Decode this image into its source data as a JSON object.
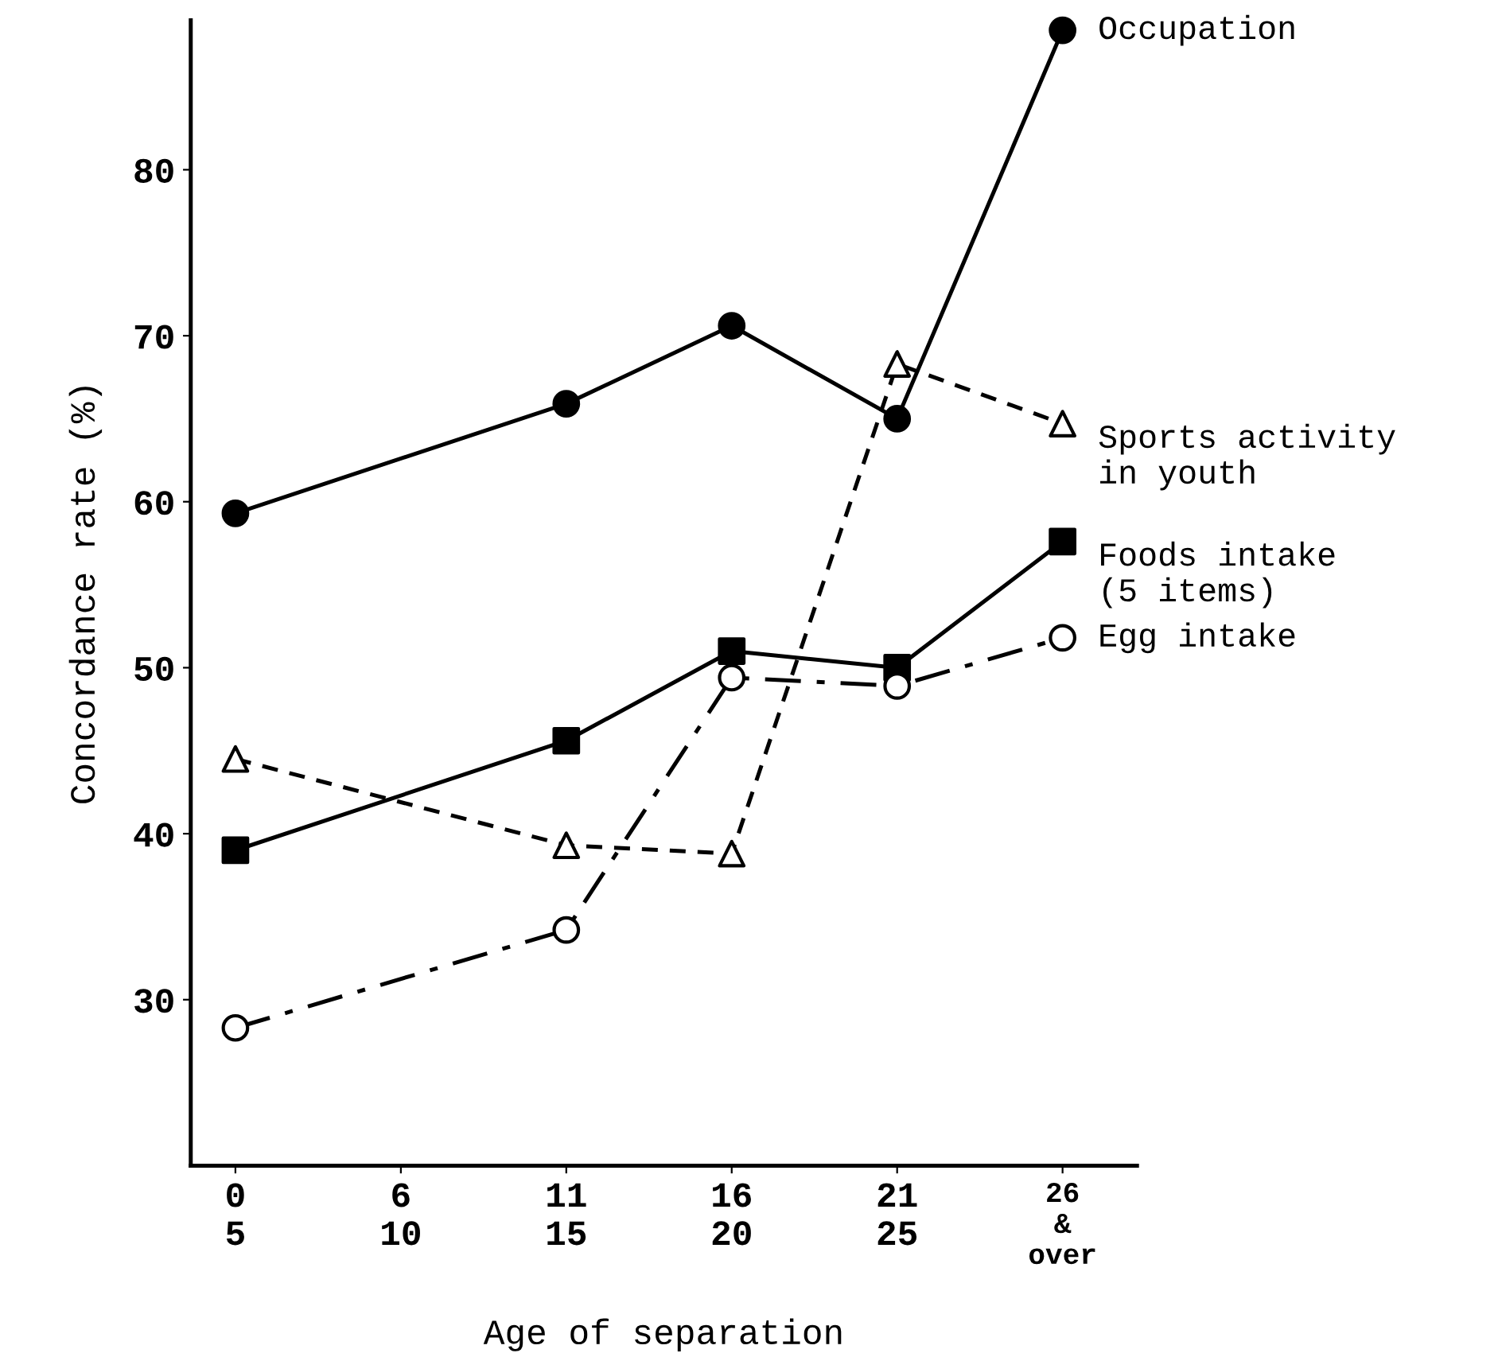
{
  "chart_data": {
    "type": "line",
    "xlabel": "Age of separation",
    "ylabel": "Concordance rate (%)",
    "categories": [
      "0\n5",
      "6\n10",
      "11\n15",
      "16\n20",
      "21\n25",
      "26\n&\nover"
    ],
    "ylim": [
      20,
      89
    ],
    "yticks": [
      30,
      40,
      50,
      60,
      70,
      80
    ],
    "grid": false,
    "legend": false,
    "series": [
      {
        "name": "Occupation",
        "color": "#000000",
        "marker": "circle",
        "line_style": "solid",
        "values": [
          59.3,
          null,
          65.9,
          70.6,
          65.0,
          88.4
        ]
      },
      {
        "name": "Sports activity\nin youth",
        "color": "#000000",
        "marker": "triangle",
        "colors": [
          "#ffffff",
          null,
          "#ffffff",
          "#ffffff",
          "#ffffff",
          "#ffffff"
        ],
        "line_style": "dashed",
        "values": [
          44.5,
          null,
          39.3,
          38.8,
          68.3,
          64.7
        ]
      },
      {
        "name": "Foods intake\n(5 items)",
        "color": "#000000",
        "marker": "square",
        "line_style": "solid",
        "values": [
          39.0,
          null,
          45.6,
          51.0,
          50.0,
          57.6
        ]
      },
      {
        "name": "Egg intake",
        "color": "#000000",
        "marker": "circle",
        "colors": [
          "#ffffff",
          null,
          "#ffffff",
          "#ffffff",
          "#ffffff",
          "#ffffff"
        ],
        "line_style": "dashdot",
        "values": [
          28.3,
          null,
          34.2,
          49.4,
          48.9,
          51.8
        ]
      }
    ]
  }
}
